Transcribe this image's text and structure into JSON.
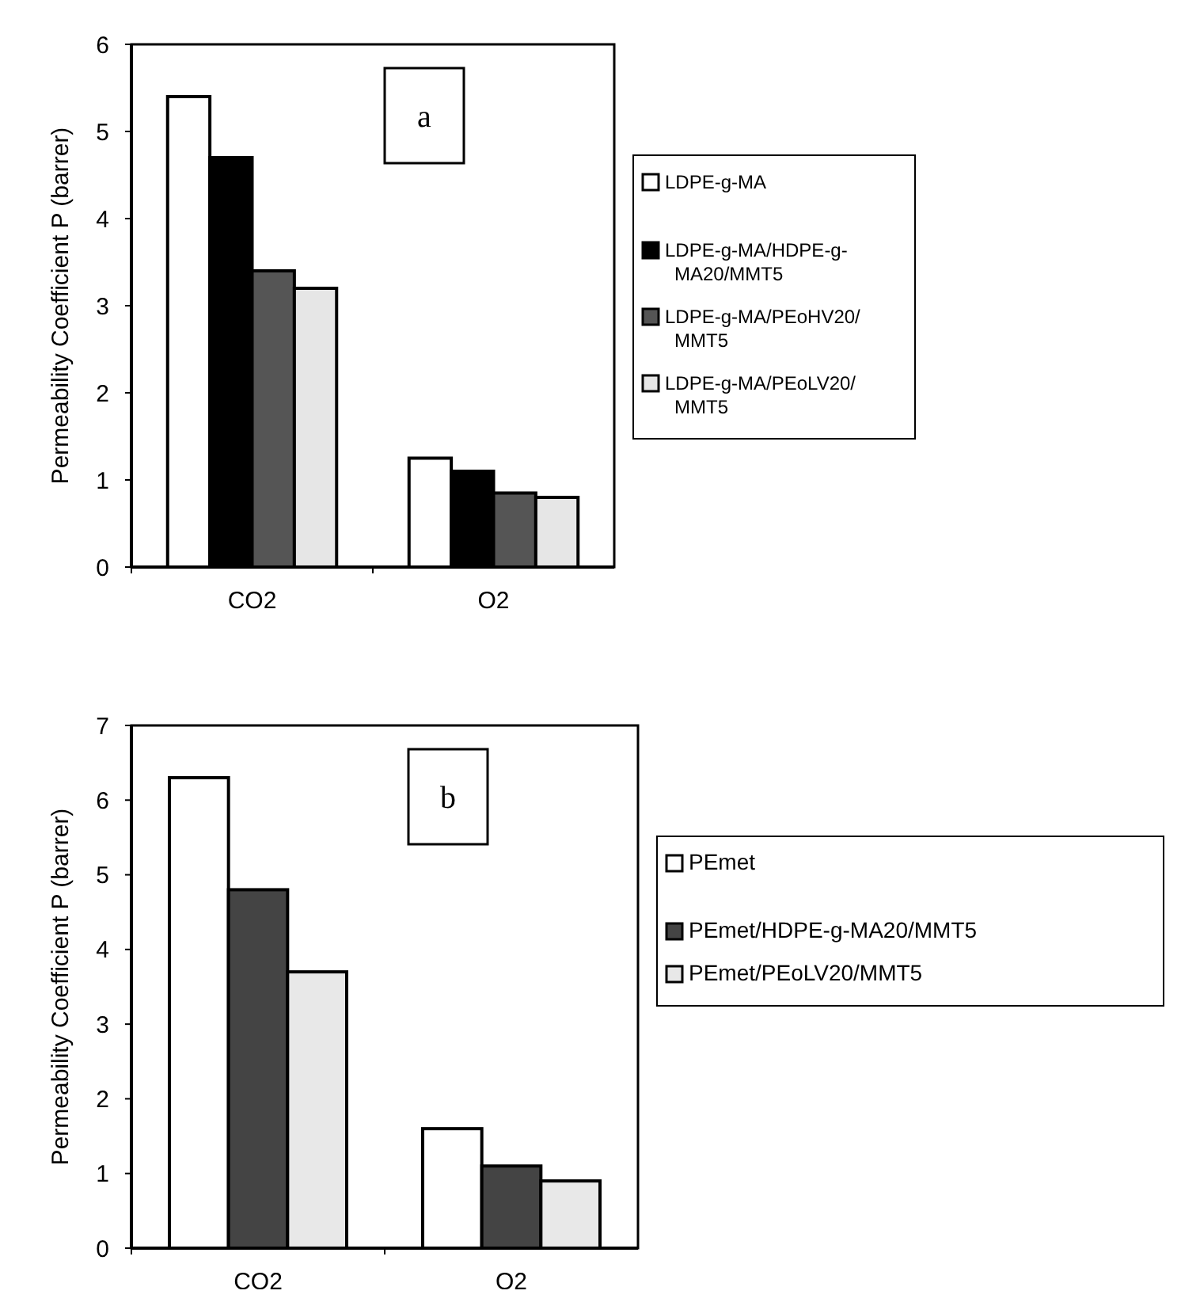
{
  "chart_data": [
    {
      "type": "bar",
      "ylabel": "Permeability Coefficient P (barrer)",
      "annotations": [
        "a"
      ],
      "categories": [
        "CO2",
        "O2"
      ],
      "ylim": [
        0,
        6
      ],
      "yticks": [
        0,
        1,
        2,
        3,
        4,
        5,
        6
      ],
      "legend": "right",
      "grid": false,
      "series": [
        {
          "name": "LDPE-g-MA",
          "color": "#ffffff",
          "values": [
            5.4,
            1.25
          ]
        },
        {
          "name": "LDPE-g-MA/HDPE-g-MA20/MMT5",
          "color": "#000000",
          "values": [
            4.7,
            1.1
          ]
        },
        {
          "name": "LDPE-g-MA/PEoHV20/MMT5",
          "color": "#555555",
          "values": [
            3.4,
            0.85
          ]
        },
        {
          "name": "LDPE-g-MA/PEoLV20/MMT5",
          "color": "#e6e6e6",
          "values": [
            3.2,
            0.8
          ]
        }
      ]
    },
    {
      "type": "bar",
      "ylabel": "Permeability Coefficient P (barrer)",
      "annotations": [
        "b"
      ],
      "categories": [
        "CO2",
        "O2"
      ],
      "ylim": [
        0,
        7
      ],
      "yticks": [
        0,
        1,
        2,
        3,
        4,
        5,
        6,
        7
      ],
      "legend": "right",
      "grid": false,
      "series": [
        {
          "name": "PEmet",
          "color": "#ffffff",
          "values": [
            6.3,
            1.6
          ]
        },
        {
          "name": "PEmet/HDPE-g-MA20/MMT5",
          "color": "#444444",
          "values": [
            4.8,
            1.1
          ]
        },
        {
          "name": "PEmet/PEoLV20/MMT5",
          "color": "#e8e8e8",
          "values": [
            3.7,
            0.9
          ]
        }
      ]
    }
  ]
}
